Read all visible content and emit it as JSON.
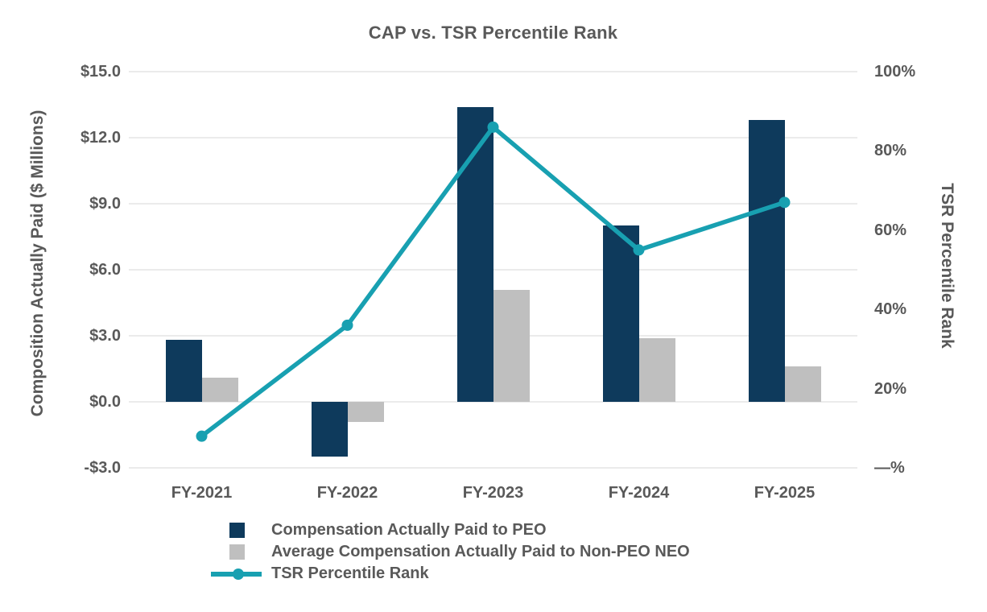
{
  "chart_data": {
    "type": "combo-bar-line",
    "title": "CAP vs. TSR Percentile Rank",
    "categories": [
      "FY-2021",
      "FY-2022",
      "FY-2023",
      "FY-2024",
      "FY-2025"
    ],
    "series": [
      {
        "name": "Compensation Actually Paid to PEO",
        "type": "bar",
        "axis": "left",
        "color": "#0E3A5C",
        "values": [
          2.8,
          -2.5,
          13.4,
          8.0,
          12.8
        ]
      },
      {
        "name": "Average Compensation Actually Paid to Non-PEO NEO",
        "type": "bar",
        "axis": "left",
        "color": "#BFBFBF",
        "values": [
          1.1,
          -0.9,
          5.1,
          2.9,
          1.6
        ]
      },
      {
        "name": "TSR Percentile Rank",
        "type": "line",
        "axis": "right",
        "color": "#18A0B1",
        "values": [
          8,
          36,
          86,
          55,
          67
        ]
      }
    ],
    "ylabel_left": "Composition Actually Paid ($ Millions)",
    "ylabel_right": "TSR Percentile Rank",
    "ylim_left": [
      -3,
      15
    ],
    "ylim_right": [
      0,
      100
    ],
    "left_ticks": [
      {
        "label": "$15.0",
        "value": 15
      },
      {
        "label": "$12.0",
        "value": 12
      },
      {
        "label": "$9.0",
        "value": 9
      },
      {
        "label": "$6.0",
        "value": 6
      },
      {
        "label": "$3.0",
        "value": 3
      },
      {
        "label": "$0.0",
        "value": 0
      },
      {
        "label": "-$3.0",
        "value": -3
      }
    ],
    "right_ticks": [
      {
        "label": "100%",
        "value": 100
      },
      {
        "label": "80%",
        "value": 80
      },
      {
        "label": "60%",
        "value": 60
      },
      {
        "label": "40%",
        "value": 40
      },
      {
        "label": "20%",
        "value": 20
      },
      {
        "label": "—%",
        "value": 0
      }
    ],
    "grid": true,
    "legend_position": "bottom-left"
  },
  "colors": {
    "text": "#595959",
    "gridline": "#EBEBEB",
    "background": "#FFFFFF",
    "peo_bar": "#0E3A5C",
    "non_peo_bar": "#BFBFBF",
    "tsr_line": "#18A0B1"
  }
}
